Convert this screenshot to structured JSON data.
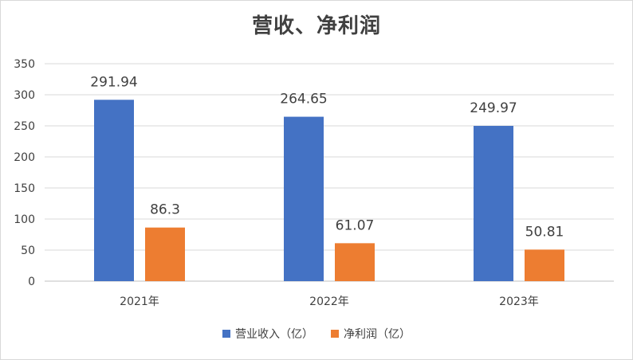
{
  "chart_data": {
    "type": "bar",
    "title": "营收、净利润",
    "categories": [
      "2021年",
      "2022年",
      "2023年"
    ],
    "series": [
      {
        "name": "营业收入（亿）",
        "color": "#4472c4",
        "values": [
          291.94,
          264.65,
          249.97
        ],
        "labels": [
          "291.94",
          "264.65",
          "249.97"
        ]
      },
      {
        "name": "净利润（亿）",
        "color": "#ed7d31",
        "values": [
          86.3,
          61.07,
          50.81
        ],
        "labels": [
          "86.3",
          "61.07",
          "50.81"
        ]
      }
    ],
    "ylim": [
      0,
      350
    ],
    "yticks": [
      0,
      50,
      100,
      150,
      200,
      250,
      300,
      350
    ],
    "grid": true,
    "legend_position": "bottom",
    "xlabel": "",
    "ylabel": ""
  }
}
